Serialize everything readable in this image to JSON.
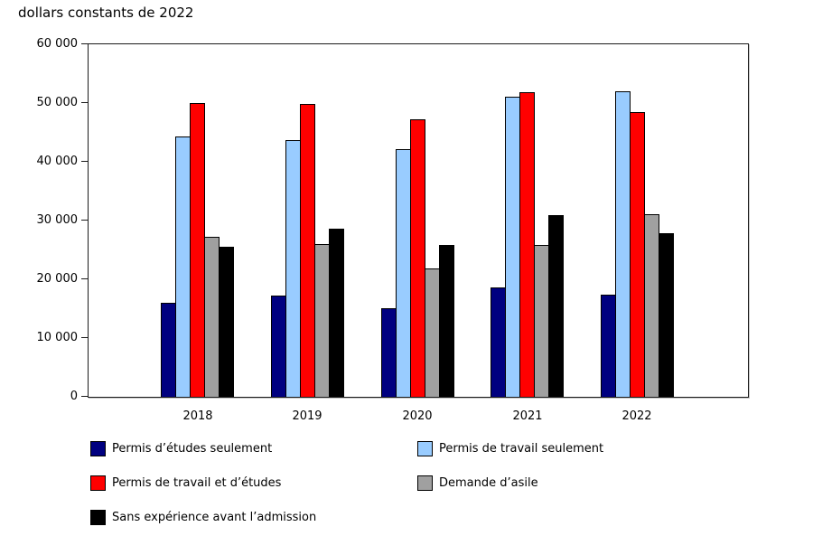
{
  "chart_data": {
    "type": "bar",
    "title": "dollars constants de 2022",
    "categories": [
      "2018",
      "2019",
      "2020",
      "2021",
      "2022"
    ],
    "series": [
      {
        "name": "Permis d’études seulement",
        "color": "#000080",
        "values": [
          16000,
          17200,
          15100,
          18600,
          17400
        ]
      },
      {
        "name": "Permis de travail seulement",
        "color": "#99CCFF",
        "values": [
          44300,
          43700,
          42100,
          51000,
          52000
        ]
      },
      {
        "name": "Permis de travail et d’études",
        "color": "#FF0000",
        "values": [
          50000,
          49800,
          47200,
          51900,
          48400
        ]
      },
      {
        "name": "Demande d’asile",
        "color": "#A0A0A0",
        "values": [
          27300,
          26000,
          21800,
          25900,
          31100
        ]
      },
      {
        "name": "Sans expérience avant l’admission",
        "color": "#000000",
        "values": [
          25600,
          28600,
          25900,
          30900,
          27900
        ]
      }
    ],
    "xlabel": "",
    "ylabel": "",
    "ylim": [
      0,
      60000
    ],
    "ytick_step": 10000,
    "ytick_labels": [
      "0",
      "10 000",
      "20 000",
      "30 000",
      "40 000",
      "50 000",
      "60 000"
    ],
    "grid": false,
    "legend_position": "bottom",
    "bar_border_color": "#000000",
    "axis_color": "#1a1a1a"
  }
}
